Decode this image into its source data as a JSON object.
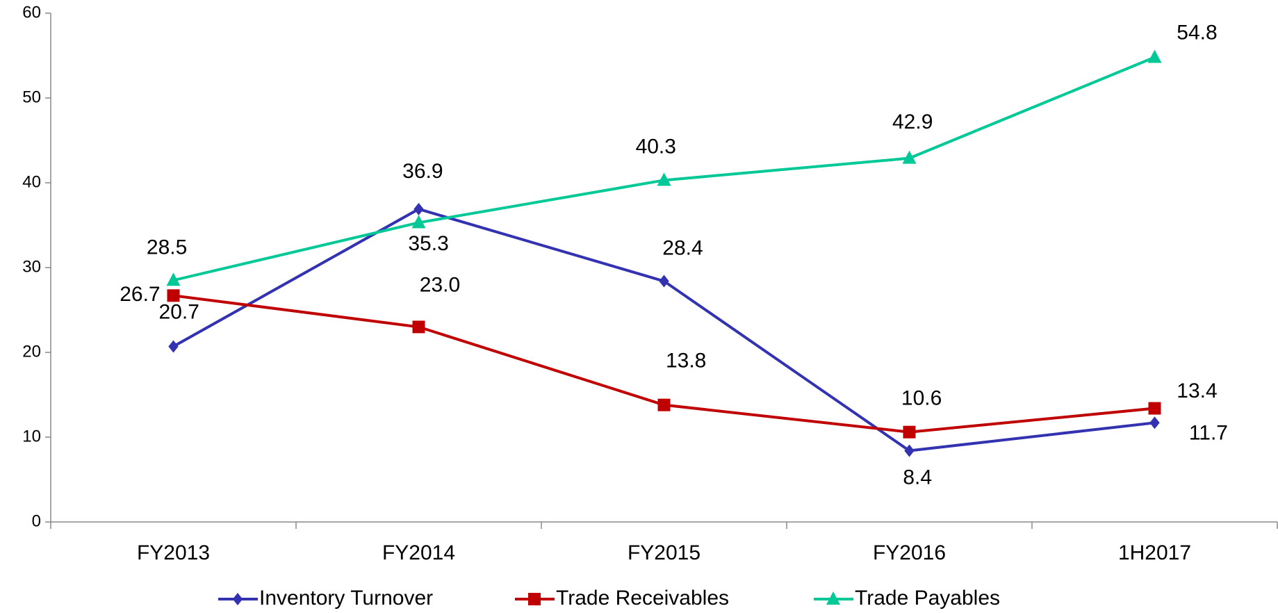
{
  "chart_data": {
    "type": "line",
    "categories": [
      "FY2013",
      "FY2014",
      "FY2015",
      "FY2016",
      "1H2017"
    ],
    "series": [
      {
        "name": "Inventory Turnover",
        "color": "#3333b2",
        "marker": "diamond",
        "values": [
          20.7,
          36.9,
          28.4,
          8.4,
          11.7
        ],
        "value_labels": [
          "20.7",
          "36.9",
          "28.4",
          "8.4",
          "11.7"
        ]
      },
      {
        "name": "Trade Receivables",
        "color": "#c00000",
        "marker": "square",
        "values": [
          26.7,
          23.0,
          13.8,
          10.6,
          13.4
        ],
        "value_labels": [
          "26.7",
          "23.0",
          "13.8",
          "10.6",
          "13.4"
        ]
      },
      {
        "name": "Trade Payables",
        "color": "#00c896",
        "marker": "triangle",
        "values": [
          28.5,
          35.3,
          40.3,
          42.9,
          54.8
        ],
        "value_labels": [
          "28.5",
          "35.3",
          "40.3",
          "42.9",
          "54.8"
        ]
      }
    ],
    "ylim": [
      0,
      60
    ],
    "yticks": [
      0,
      10,
      20,
      30,
      40,
      50,
      60
    ],
    "grid": false,
    "legend": "bottom"
  }
}
